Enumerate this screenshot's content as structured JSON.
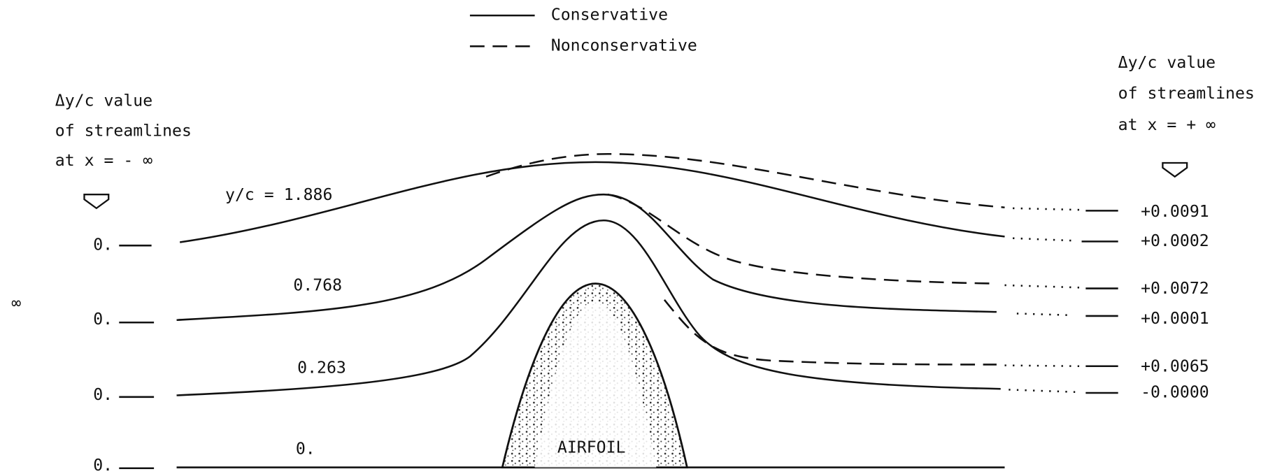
{
  "legend": [
    {
      "label": "Conservative"
    },
    {
      "label": "Nonconservative"
    }
  ],
  "left_label": {
    "lines": [
      "Δy/c value",
      "of streamlines",
      "at  x = - ∞"
    ]
  },
  "right_label": {
    "lines": [
      "Δy/c value",
      "of streamlines",
      "at  x = + ∞"
    ]
  },
  "axis_symbol": "∞",
  "streamlines": [
    {
      "label": "y/c = 1.886",
      "left_value": "0.",
      "right_nonconservative": "+0.0091",
      "right_conservative": "+0.0002"
    },
    {
      "label": "0.768",
      "left_value": "0.",
      "right_nonconservative": "+0.0072",
      "right_conservative": "+0.0001"
    },
    {
      "label": "0.263",
      "left_value": "0.",
      "right_nonconservative": "+0.0065",
      "right_conservative": "-0.0000"
    },
    {
      "label": "0.",
      "left_value": "0."
    }
  ],
  "airfoil_label": "AIRFOIL"
}
